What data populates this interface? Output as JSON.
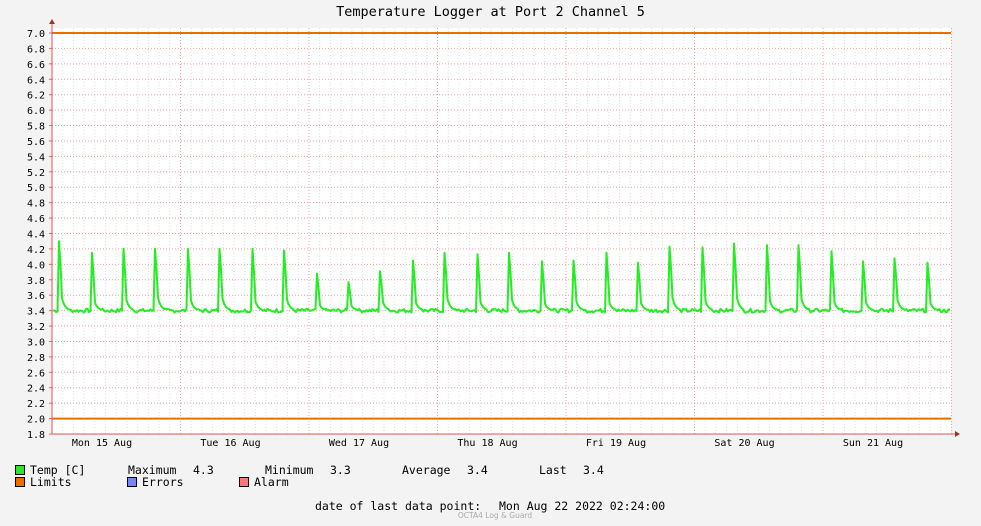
{
  "chart_data": {
    "type": "line",
    "title": "Temperature Logger at Port 2 Channel 5",
    "ylim": [
      1.8,
      7.0
    ],
    "y_ticks": [
      1.8,
      2.0,
      2.2,
      2.4,
      2.6,
      2.8,
      3.0,
      3.2,
      3.4,
      3.6,
      3.8,
      4.0,
      4.2,
      4.4,
      4.6,
      4.8,
      5.0,
      5.2,
      5.4,
      5.6,
      5.8,
      6.0,
      6.2,
      6.4,
      6.6,
      6.8,
      7.0
    ],
    "x_labels": [
      "Mon 15 Aug",
      "Tue 16 Aug",
      "Wed 17 Aug",
      "Thu 18 Aug",
      "Fri 19 Aug",
      "Sat 20 Aug",
      "Sun 21 Aug"
    ],
    "grid": true,
    "limits": {
      "upper": 7.0,
      "lower": 2.0,
      "color": "#e87000"
    },
    "series": [
      {
        "name": "Temp [C]",
        "color": "#22ee22",
        "baseline": 3.4,
        "peaks": [
          4.3,
          4.15,
          4.2,
          4.2,
          4.2,
          4.2,
          4.2,
          4.18,
          3.88,
          3.77,
          3.91,
          4.05,
          4.15,
          4.13,
          4.15,
          4.04,
          4.05,
          4.15,
          4.02,
          4.23,
          4.22,
          4.27,
          4.25,
          4.25,
          4.17,
          4.04,
          4.08,
          4.02
        ]
      }
    ]
  },
  "legend": {
    "temp_label": "Temp [C]",
    "maximum_label": "Maximum",
    "maximum_value": "4.3",
    "minimum_label": "Minimum",
    "minimum_value": "3.3",
    "average_label": "Average",
    "average_value": "3.4",
    "last_label": "Last",
    "last_value": "3.4",
    "limits_label": "Limits",
    "errors_label": "Errors",
    "alarm_label": "Alarm",
    "colors": {
      "temp": "#22ee22",
      "limits": "#e87000",
      "errors": "#7788ff",
      "alarm": "#ff7777"
    }
  },
  "footer": {
    "last_point_label": "date of last data point:",
    "last_point_value": "Mon Aug 22 2022 02:24:00",
    "credit": "OCTA4 Log & Guard"
  }
}
